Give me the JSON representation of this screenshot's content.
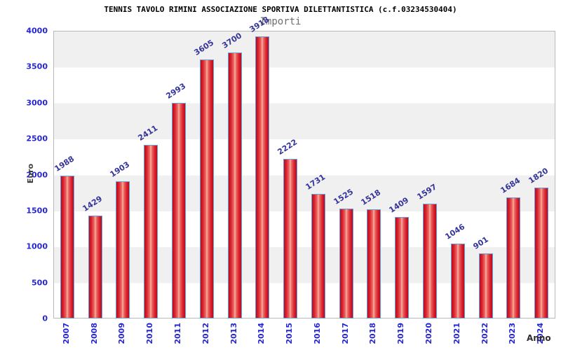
{
  "chart_data": {
    "type": "bar",
    "title": "TENNIS TAVOLO RIMINI ASSOCIAZIONE SPORTIVA DILETTANTISTICA (c.f.03234530404)",
    "subtitle": "Importi",
    "xlabel": "Anno",
    "ylabel": "Euro",
    "categories": [
      "2007",
      "2008",
      "2009",
      "2010",
      "2011",
      "2012",
      "2013",
      "2014",
      "2015",
      "2016",
      "2017",
      "2018",
      "2019",
      "2020",
      "2021",
      "2022",
      "2023",
      "2024"
    ],
    "values": [
      1988,
      1429,
      1903,
      2411,
      2993,
      3605,
      3700,
      3918,
      2222,
      1731,
      1525,
      1518,
      1409,
      1597,
      1046,
      901,
      1684,
      1820
    ],
    "ylim": [
      0,
      4000
    ],
    "ytick_step": 500,
    "yticks": [
      0,
      500,
      1000,
      1500,
      2000,
      2500,
      3000,
      3500,
      4000
    ],
    "grid": "alternating horizontal bands every 500, gray band at top",
    "legend": "none",
    "colors": {
      "bar_edge": "#dc1f2e",
      "bar_center": "#f6b5ad",
      "bar_border": "#64a0dc",
      "axis_tick_label": "#2525d6",
      "value_label": "#35359a",
      "band_gray": "#f0f0f0",
      "band_white": "#ffffff",
      "plot_border": "#b9b9b9",
      "title_color": "#000000",
      "subtitle_color": "#6e6e6e",
      "axis_title_color": "#3d3d3d"
    }
  }
}
